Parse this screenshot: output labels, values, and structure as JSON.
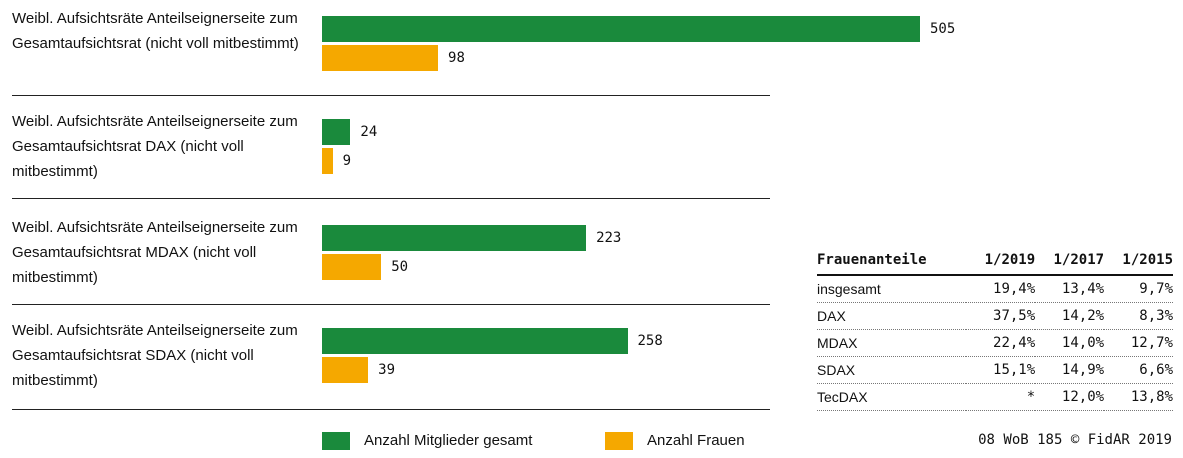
{
  "chart_data": {
    "type": "bar",
    "orientation": "horizontal",
    "categories": [
      "Weibl. Aufsichtsräte Anteilseignerseite zum Gesamtaufsichtsrat (nicht voll mitbestimmt)",
      "Weibl. Aufsichtsräte Anteilseignerseite zum Gesamtaufsichtsrat DAX (nicht voll mitbestimmt)",
      "Weibl. Aufsichtsräte Anteilseignerseite zum Gesamtaufsichtsrat MDAX (nicht voll mitbestimmt)",
      "Weibl. Aufsichtsräte Anteilseignerseite zum Gesamtaufsichtsrat SDAX (nicht voll mitbestimmt)"
    ],
    "series": [
      {
        "name": "Anzahl Mitglieder gesamt",
        "color": "#1a8a3c",
        "values": [
          505,
          24,
          223,
          258
        ]
      },
      {
        "name": "Anzahl Frauen",
        "color": "#f5a800",
        "values": [
          98,
          9,
          50,
          39
        ]
      }
    ],
    "source": "08 WoB 185 © FidAR 2019"
  },
  "table": {
    "columns": [
      "Frauenanteile",
      "1/2019",
      "1/2017",
      "1/2015"
    ],
    "rows": [
      [
        "insgesamt",
        "19,4%",
        "13,4%",
        "9,7%"
      ],
      [
        "DAX",
        "37,5%",
        "14,2%",
        "8,3%"
      ],
      [
        "MDAX",
        "22,4%",
        "14,0%",
        "12,7%"
      ],
      [
        "SDAX",
        "15,1%",
        "14,9%",
        "6,6%"
      ],
      [
        "TecDAX",
        "*",
        "12,0%",
        "13,8%"
      ]
    ]
  }
}
